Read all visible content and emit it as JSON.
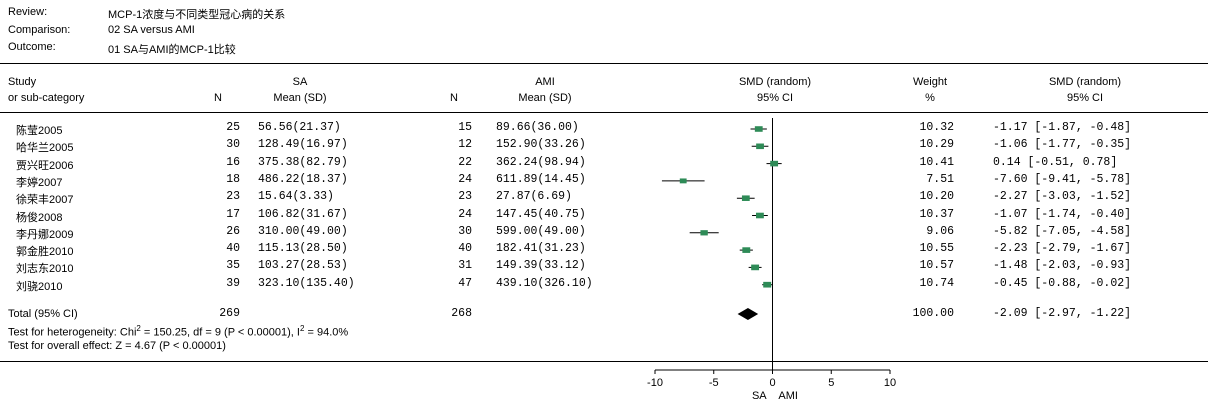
{
  "meta": {
    "review_label": "Review:",
    "review_value": "MCP-1浓度与不同类型冠心病的关系",
    "comparison_label": "Comparison:",
    "comparison_value": "02 SA versus AMI",
    "outcome_label": "Outcome:",
    "outcome_value": "01 SA与AMI的MCP-1比较"
  },
  "headers": {
    "study_1": "Study",
    "study_2": "or sub-category",
    "group1": "SA",
    "group1_n": "N",
    "group1_mean": "Mean (SD)",
    "group2": "AMI",
    "group2_n": "N",
    "group2_mean": "Mean (SD)",
    "plot_1": "SMD (random)",
    "plot_2": "95% CI",
    "weight_1": "Weight",
    "weight_2": "%",
    "effect_1": "SMD (random)",
    "effect_2": "95% CI"
  },
  "chart_data": {
    "type": "forest",
    "xlim": [
      -10,
      10
    ],
    "ticks": [
      -10,
      -5,
      0,
      5,
      10
    ],
    "xlabel_left": "SA",
    "xlabel_right": "AMI",
    "colors": {
      "marker": "#2e8b57",
      "line": "#000000",
      "diamond": "#000000"
    },
    "studies": [
      {
        "name": "陈莹2005",
        "n1": "25",
        "m1": "56.56(21.37)",
        "n2": "15",
        "m2": "89.66(36.00)",
        "weight": "10.32",
        "ci_text": "-1.17 [-1.87, -0.48]",
        "smd": -1.17,
        "lo": -1.87,
        "hi": -0.48,
        "w": 10.32
      },
      {
        "name": "哈华兰2005",
        "n1": "30",
        "m1": "128.49(16.97)",
        "n2": "12",
        "m2": "152.90(33.26)",
        "weight": "10.29",
        "ci_text": "-1.06 [-1.77, -0.35]",
        "smd": -1.06,
        "lo": -1.77,
        "hi": -0.35,
        "w": 10.29
      },
      {
        "name": "贾兴旺2006",
        "n1": "16",
        "m1": "375.38(82.79)",
        "n2": "22",
        "m2": "362.24(98.94)",
        "weight": "10.41",
        "ci_text": "0.14 [-0.51, 0.78]",
        "smd": 0.14,
        "lo": -0.51,
        "hi": 0.78,
        "w": 10.41
      },
      {
        "name": "李婷2007",
        "n1": "18",
        "m1": "486.22(18.37)",
        "n2": "24",
        "m2": "611.89(14.45)",
        "weight": "7.51",
        "ci_text": "-7.60 [-9.41, -5.78]",
        "smd": -7.6,
        "lo": -9.41,
        "hi": -5.78,
        "w": 7.51
      },
      {
        "name": "徐荣丰2007",
        "n1": "23",
        "m1": "15.64(3.33)",
        "n2": "23",
        "m2": "27.87(6.69)",
        "weight": "10.20",
        "ci_text": "-2.27 [-3.03, -1.52]",
        "smd": -2.27,
        "lo": -3.03,
        "hi": -1.52,
        "w": 10.2
      },
      {
        "name": "杨俊2008",
        "n1": "17",
        "m1": "106.82(31.67)",
        "n2": "24",
        "m2": "147.45(40.75)",
        "weight": "10.37",
        "ci_text": "-1.07 [-1.74, -0.40]",
        "smd": -1.07,
        "lo": -1.74,
        "hi": -0.4,
        "w": 10.37
      },
      {
        "name": "李丹娜2009",
        "n1": "26",
        "m1": "310.00(49.00)",
        "n2": "30",
        "m2": "599.00(49.00)",
        "weight": "9.06",
        "ci_text": "-5.82 [-7.05, -4.58]",
        "smd": -5.82,
        "lo": -7.05,
        "hi": -4.58,
        "w": 9.06
      },
      {
        "name": "郭金胜2010",
        "n1": "40",
        "m1": "115.13(28.50)",
        "n2": "40",
        "m2": "182.41(31.23)",
        "weight": "10.55",
        "ci_text": "-2.23 [-2.79, -1.67]",
        "smd": -2.23,
        "lo": -2.79,
        "hi": -1.67,
        "w": 10.55
      },
      {
        "name": "刘志东2010",
        "n1": "35",
        "m1": "103.27(28.53)",
        "n2": "31",
        "m2": "149.39(33.12)",
        "weight": "10.57",
        "ci_text": "-1.48 [-2.03, -0.93]",
        "smd": -1.48,
        "lo": -2.03,
        "hi": -0.93,
        "w": 10.57
      },
      {
        "name": "刘骁2010",
        "n1": "39",
        "m1": "323.10(135.40)",
        "n2": "47",
        "m2": "439.10(326.10)",
        "weight": "10.74",
        "ci_text": "-0.45 [-0.88, -0.02]",
        "smd": -0.45,
        "lo": -0.88,
        "hi": -0.02,
        "w": 10.74
      }
    ],
    "total": {
      "label": "Total (95% CI)",
      "n1": "269",
      "n2": "268",
      "weight": "100.00",
      "ci_text": "-2.09 [-2.97, -1.22]",
      "smd": -2.09,
      "lo": -2.97,
      "hi": -1.22
    }
  },
  "tests": {
    "heterogeneity_pre": "Test for heterogeneity: Chi",
    "heterogeneity_sup1": "2",
    "heterogeneity_mid": " = 150.25, df = 9 (P < 0.00001), I",
    "heterogeneity_sup2": "2",
    "heterogeneity_post": " = 94.0%",
    "overall": "Test for overall effect: Z = 4.67 (P < 0.00001)"
  }
}
